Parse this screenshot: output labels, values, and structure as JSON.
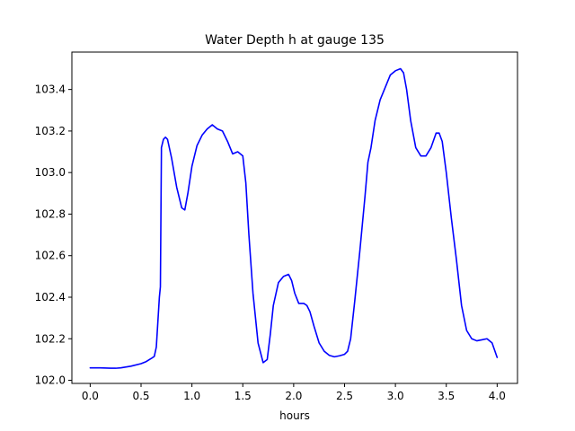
{
  "chart_data": {
    "type": "line",
    "title": "Water Depth h at gauge 135",
    "xlabel": "hours",
    "ylabel": "",
    "xlim": [
      -0.18,
      4.2
    ],
    "ylim": [
      101.985,
      103.58
    ],
    "xticks": [
      0.0,
      0.5,
      1.0,
      1.5,
      2.0,
      2.5,
      3.0,
      3.5,
      4.0
    ],
    "xtick_labels": [
      "0.0",
      "0.5",
      "1.0",
      "1.5",
      "2.0",
      "2.5",
      "3.0",
      "3.5",
      "4.0"
    ],
    "yticks": [
      102.0,
      102.2,
      102.4,
      102.6,
      102.8,
      103.0,
      103.2,
      103.4
    ],
    "ytick_labels": [
      "102.0",
      "102.2",
      "102.4",
      "102.6",
      "102.8",
      "103.0",
      "103.2",
      "103.4"
    ],
    "grid": false,
    "series": [
      {
        "color": "#0000ff",
        "x": [
          0.0,
          0.1,
          0.2,
          0.25,
          0.3,
          0.4,
          0.5,
          0.55,
          0.6,
          0.63,
          0.65,
          0.67,
          0.68,
          0.69,
          0.7,
          0.7,
          0.72,
          0.74,
          0.76,
          0.8,
          0.85,
          0.9,
          0.93,
          0.96,
          1.0,
          1.05,
          1.1,
          1.15,
          1.2,
          1.25,
          1.3,
          1.35,
          1.4,
          1.45,
          1.5,
          1.53,
          1.56,
          1.6,
          1.65,
          1.7,
          1.74,
          1.77,
          1.8,
          1.85,
          1.9,
          1.95,
          1.98,
          2.01,
          2.05,
          2.1,
          2.13,
          2.16,
          2.2,
          2.25,
          2.3,
          2.35,
          2.4,
          2.45,
          2.5,
          2.53,
          2.56,
          2.6,
          2.65,
          2.7,
          2.73,
          2.76,
          2.8,
          2.85,
          2.9,
          2.95,
          3.0,
          3.05,
          3.08,
          3.11,
          3.15,
          3.2,
          3.25,
          3.3,
          3.35,
          3.4,
          3.43,
          3.46,
          3.5,
          3.55,
          3.6,
          3.65,
          3.7,
          3.75,
          3.8,
          3.85,
          3.9,
          3.95,
          4.0
        ],
        "y": [
          102.06,
          102.06,
          102.058,
          102.058,
          102.06,
          102.068,
          102.08,
          102.09,
          102.105,
          102.115,
          102.16,
          102.32,
          102.4,
          102.45,
          103.1,
          103.12,
          103.16,
          103.17,
          103.16,
          103.07,
          102.93,
          102.83,
          102.82,
          102.9,
          103.03,
          103.13,
          103.18,
          103.21,
          103.23,
          103.21,
          103.2,
          103.15,
          103.09,
          103.1,
          103.08,
          102.95,
          102.7,
          102.42,
          102.18,
          102.085,
          102.1,
          102.22,
          102.36,
          102.47,
          102.5,
          102.51,
          102.48,
          102.42,
          102.37,
          102.37,
          102.36,
          102.33,
          102.26,
          102.18,
          102.14,
          102.12,
          102.113,
          102.118,
          102.125,
          102.14,
          102.2,
          102.38,
          102.62,
          102.88,
          103.05,
          103.12,
          103.25,
          103.35,
          103.41,
          103.47,
          103.49,
          103.5,
          103.48,
          103.4,
          103.25,
          103.12,
          103.08,
          103.08,
          103.12,
          103.19,
          103.19,
          103.15,
          103.0,
          102.78,
          102.58,
          102.36,
          102.24,
          102.2,
          102.19,
          102.195,
          102.2,
          102.18,
          102.11
        ]
      }
    ]
  }
}
